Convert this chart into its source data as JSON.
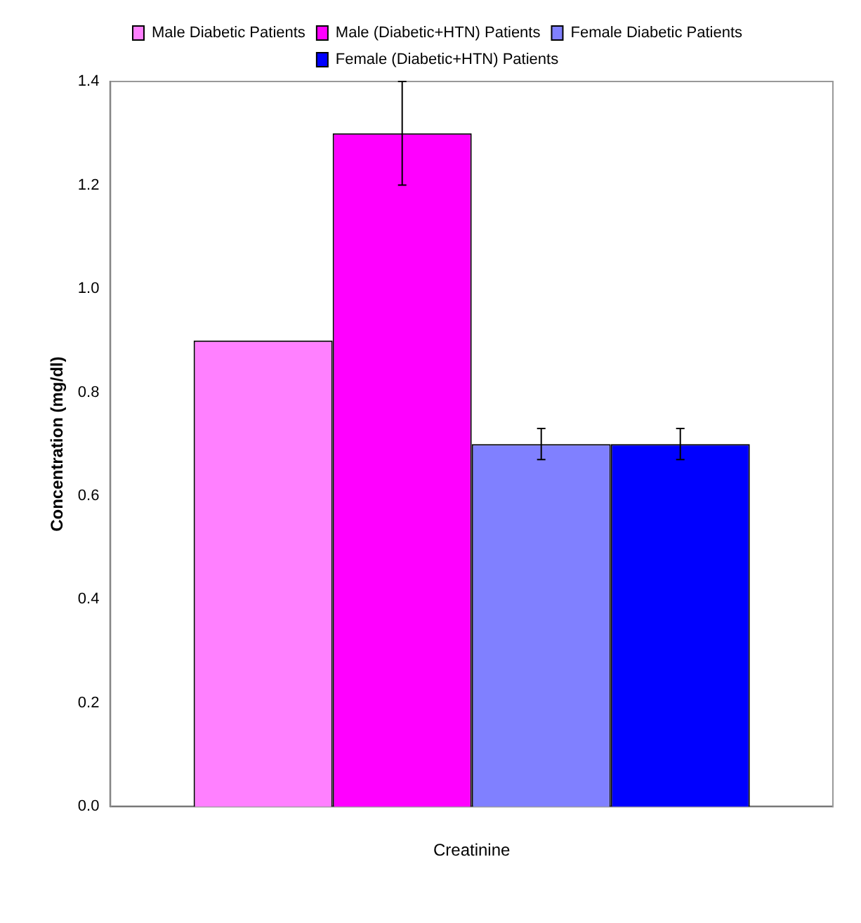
{
  "chart_data": {
    "type": "bar",
    "ylabel": "Concentration (mg/dl)",
    "xlabel": "Creatinine",
    "categories": [
      null
    ],
    "series": [
      {
        "name": "Male Diabetic Patients",
        "color": "#ff80ff",
        "values": [
          0.9
        ],
        "errors": [
          null
        ]
      },
      {
        "name": "Male (Diabetic+HTN) Patients",
        "color": "#ff00ff",
        "values": [
          1.3
        ],
        "errors": [
          0.1
        ]
      },
      {
        "name": "Female Diabetic Patients",
        "color": "#8080ff",
        "values": [
          0.7
        ],
        "errors": [
          0.03
        ]
      },
      {
        "name": "Female (Diabetic+HTN) Patients",
        "color": "#0000ff",
        "values": [
          0.7
        ],
        "errors": [
          0.03
        ]
      }
    ],
    "ylim": [
      0,
      1.4
    ],
    "yticks": [
      {
        "value": 0,
        "label": "0.0"
      },
      0.2,
      0.4,
      0.6,
      0.8,
      {
        "value": 1,
        "label": "1.0"
      },
      1.2,
      1.4
    ],
    "grid": false,
    "legend": "top"
  }
}
